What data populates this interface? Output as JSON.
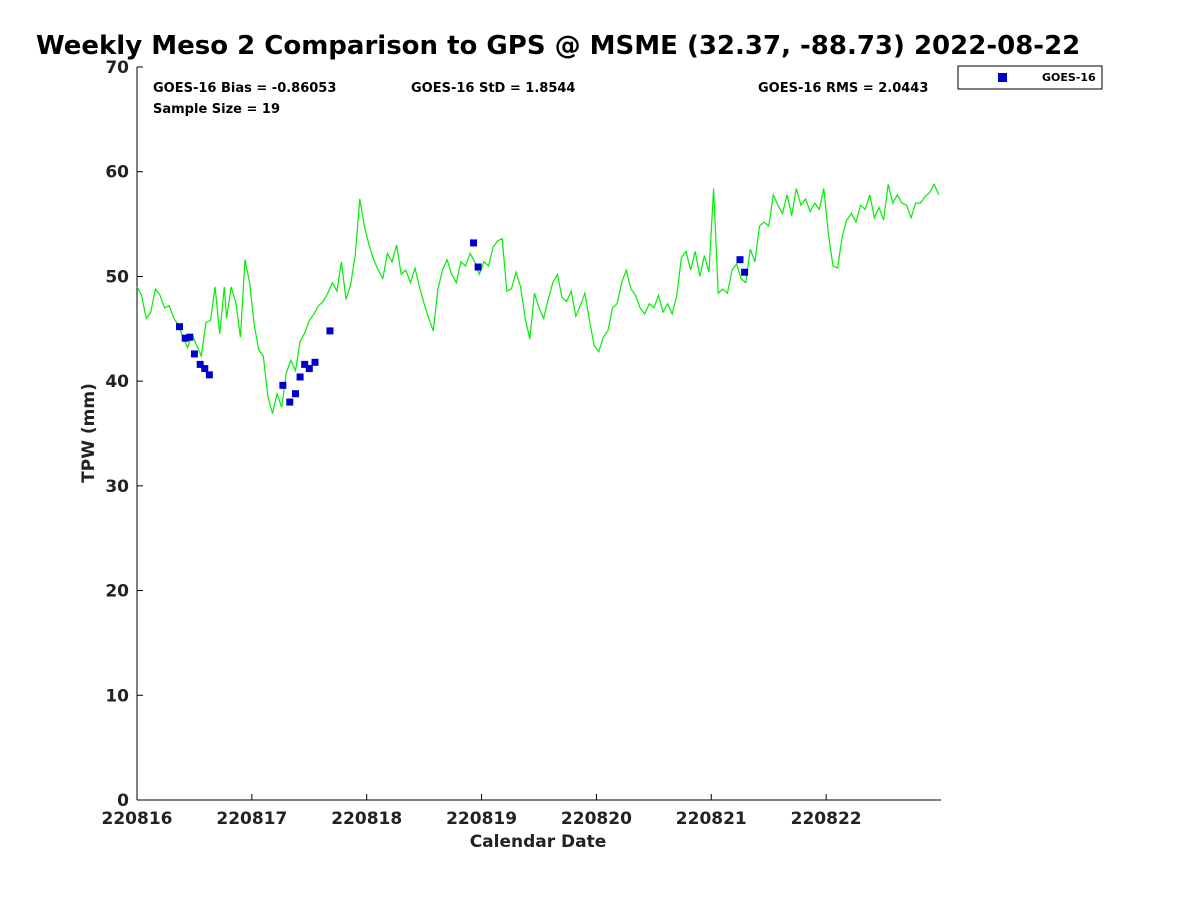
{
  "chart_data": {
    "type": "scatter",
    "title": "Weekly Meso 2 Comparison to GPS @ MSME (32.37, -88.73) 2022-08-22",
    "xlabel": "Calendar Date",
    "ylabel": "TPW (mm)",
    "xlim": [
      0,
      7
    ],
    "ylim": [
      0,
      70
    ],
    "x_ticks": [
      0,
      1,
      2,
      3,
      4,
      5,
      6
    ],
    "x_tick_labels": [
      "220816",
      "220817",
      "220818",
      "220819",
      "220820",
      "220821",
      "220822"
    ],
    "y_ticks": [
      0,
      10,
      20,
      30,
      40,
      50,
      60,
      70
    ],
    "y_tick_labels": [
      "0",
      "10",
      "20",
      "30",
      "40",
      "50",
      "60",
      "70"
    ],
    "grid": false,
    "legend_position": "outside-top-right",
    "stats": {
      "bias": "GOES-16 Bias = -0.86053",
      "std": "GOES-16 StD = 1.8544",
      "rms": "GOES-16 RMS = 2.0443",
      "sample": "Sample Size = 19"
    },
    "series": [
      {
        "name": "GOES-16",
        "kind": "scatter",
        "color": "#0000cc",
        "points": [
          [
            0.37,
            45.2
          ],
          [
            0.42,
            44.1
          ],
          [
            0.46,
            44.2
          ],
          [
            0.5,
            42.6
          ],
          [
            0.55,
            41.6
          ],
          [
            0.59,
            41.2
          ],
          [
            0.63,
            40.6
          ],
          [
            1.27,
            39.6
          ],
          [
            1.33,
            38.0
          ],
          [
            1.38,
            38.8
          ],
          [
            1.42,
            40.4
          ],
          [
            1.46,
            41.6
          ],
          [
            1.5,
            41.2
          ],
          [
            1.55,
            41.8
          ],
          [
            1.68,
            44.8
          ],
          [
            2.93,
            53.2
          ],
          [
            2.97,
            50.9
          ],
          [
            5.25,
            51.6
          ],
          [
            5.29,
            50.4
          ]
        ]
      },
      {
        "kind": "line",
        "color": "#00ee00",
        "points": [
          [
            0.0,
            49.0
          ],
          [
            0.04,
            48.2
          ],
          [
            0.08,
            46.0
          ],
          [
            0.12,
            46.6
          ],
          [
            0.16,
            48.8
          ],
          [
            0.2,
            48.2
          ],
          [
            0.24,
            47.0
          ],
          [
            0.28,
            47.2
          ],
          [
            0.32,
            46.0
          ],
          [
            0.36,
            45.4
          ],
          [
            0.4,
            44.2
          ],
          [
            0.44,
            43.2
          ],
          [
            0.48,
            44.4
          ],
          [
            0.52,
            43.4
          ],
          [
            0.56,
            42.4
          ],
          [
            0.6,
            45.6
          ],
          [
            0.64,
            45.8
          ],
          [
            0.68,
            49.0
          ],
          [
            0.72,
            44.5
          ],
          [
            0.76,
            49.0
          ],
          [
            0.78,
            46.0
          ],
          [
            0.82,
            49.0
          ],
          [
            0.86,
            47.5
          ],
          [
            0.9,
            44.2
          ],
          [
            0.94,
            51.6
          ],
          [
            0.98,
            49.4
          ],
          [
            1.02,
            45.4
          ],
          [
            1.06,
            43.0
          ],
          [
            1.1,
            42.4
          ],
          [
            1.14,
            38.5
          ],
          [
            1.18,
            36.9
          ],
          [
            1.22,
            38.8
          ],
          [
            1.26,
            37.5
          ],
          [
            1.3,
            40.8
          ],
          [
            1.34,
            42.0
          ],
          [
            1.38,
            41.0
          ],
          [
            1.42,
            43.8
          ],
          [
            1.46,
            44.6
          ],
          [
            1.5,
            45.8
          ],
          [
            1.54,
            46.4
          ],
          [
            1.58,
            47.2
          ],
          [
            1.62,
            47.6
          ],
          [
            1.66,
            48.4
          ],
          [
            1.7,
            49.4
          ],
          [
            1.74,
            48.6
          ],
          [
            1.78,
            51.4
          ],
          [
            1.82,
            47.8
          ],
          [
            1.86,
            49.2
          ],
          [
            1.9,
            52.0
          ],
          [
            1.94,
            57.4
          ],
          [
            1.98,
            54.8
          ],
          [
            2.02,
            53.0
          ],
          [
            2.06,
            51.6
          ],
          [
            2.1,
            50.6
          ],
          [
            2.14,
            49.8
          ],
          [
            2.18,
            52.2
          ],
          [
            2.22,
            51.4
          ],
          [
            2.26,
            53.0
          ],
          [
            2.3,
            50.2
          ],
          [
            2.34,
            50.6
          ],
          [
            2.38,
            49.4
          ],
          [
            2.42,
            50.8
          ],
          [
            2.46,
            49.0
          ],
          [
            2.5,
            47.4
          ],
          [
            2.54,
            46.0
          ],
          [
            2.58,
            44.8
          ],
          [
            2.62,
            48.8
          ],
          [
            2.66,
            50.6
          ],
          [
            2.7,
            51.6
          ],
          [
            2.74,
            50.2
          ],
          [
            2.78,
            49.4
          ],
          [
            2.82,
            51.4
          ],
          [
            2.86,
            51.0
          ],
          [
            2.9,
            52.2
          ],
          [
            2.94,
            51.4
          ],
          [
            2.98,
            50.2
          ],
          [
            3.02,
            51.4
          ],
          [
            3.06,
            51.0
          ],
          [
            3.1,
            52.8
          ],
          [
            3.14,
            53.4
          ],
          [
            3.18,
            53.6
          ],
          [
            3.22,
            48.6
          ],
          [
            3.26,
            48.8
          ],
          [
            3.3,
            50.4
          ],
          [
            3.34,
            49.0
          ],
          [
            3.38,
            46.0
          ],
          [
            3.42,
            44.0
          ],
          [
            3.46,
            48.4
          ],
          [
            3.5,
            47.0
          ],
          [
            3.54,
            46.0
          ],
          [
            3.58,
            47.8
          ],
          [
            3.62,
            49.4
          ],
          [
            3.66,
            50.2
          ],
          [
            3.7,
            48.0
          ],
          [
            3.74,
            47.6
          ],
          [
            3.78,
            48.6
          ],
          [
            3.82,
            46.2
          ],
          [
            3.86,
            47.2
          ],
          [
            3.9,
            48.4
          ],
          [
            3.94,
            45.8
          ],
          [
            3.98,
            43.4
          ],
          [
            4.02,
            42.8
          ],
          [
            4.06,
            44.2
          ],
          [
            4.1,
            44.8
          ],
          [
            4.14,
            47.0
          ],
          [
            4.18,
            47.4
          ],
          [
            4.22,
            49.4
          ],
          [
            4.26,
            50.6
          ],
          [
            4.3,
            48.8
          ],
          [
            4.34,
            48.2
          ],
          [
            4.38,
            47.0
          ],
          [
            4.42,
            46.4
          ],
          [
            4.46,
            47.4
          ],
          [
            4.5,
            47.0
          ],
          [
            4.54,
            48.2
          ],
          [
            4.58,
            46.6
          ],
          [
            4.62,
            47.4
          ],
          [
            4.66,
            46.4
          ],
          [
            4.7,
            48.2
          ],
          [
            4.74,
            51.8
          ],
          [
            4.78,
            52.4
          ],
          [
            4.82,
            50.6
          ],
          [
            4.86,
            52.4
          ],
          [
            4.9,
            50.0
          ],
          [
            4.94,
            52.0
          ],
          [
            4.98,
            50.4
          ],
          [
            5.02,
            58.4
          ],
          [
            5.06,
            48.4
          ],
          [
            5.1,
            48.8
          ],
          [
            5.14,
            48.4
          ],
          [
            5.18,
            50.6
          ],
          [
            5.22,
            51.2
          ],
          [
            5.26,
            49.8
          ],
          [
            5.3,
            49.4
          ],
          [
            5.34,
            52.6
          ],
          [
            5.38,
            51.4
          ],
          [
            5.42,
            54.8
          ],
          [
            5.46,
            55.2
          ],
          [
            5.5,
            54.8
          ],
          [
            5.54,
            57.8
          ],
          [
            5.58,
            56.8
          ],
          [
            5.62,
            56.0
          ],
          [
            5.66,
            57.8
          ],
          [
            5.7,
            55.8
          ],
          [
            5.74,
            58.4
          ],
          [
            5.78,
            56.8
          ],
          [
            5.82,
            57.4
          ],
          [
            5.86,
            56.2
          ],
          [
            5.9,
            57.0
          ],
          [
            5.94,
            56.4
          ],
          [
            5.98,
            58.4
          ],
          [
            6.02,
            54.0
          ],
          [
            6.06,
            51.0
          ],
          [
            6.1,
            50.8
          ],
          [
            6.14,
            53.8
          ],
          [
            6.18,
            55.4
          ],
          [
            6.22,
            56.0
          ],
          [
            6.26,
            55.2
          ],
          [
            6.3,
            56.8
          ],
          [
            6.34,
            56.4
          ],
          [
            6.38,
            57.8
          ],
          [
            6.42,
            55.6
          ],
          [
            6.46,
            56.6
          ],
          [
            6.5,
            55.4
          ],
          [
            6.54,
            58.8
          ],
          [
            6.58,
            57.0
          ],
          [
            6.62,
            57.8
          ],
          [
            6.66,
            57.0
          ],
          [
            6.7,
            56.8
          ],
          [
            6.74,
            55.6
          ],
          [
            6.78,
            57.0
          ],
          [
            6.82,
            57.0
          ],
          [
            6.86,
            57.6
          ],
          [
            6.9,
            58.0
          ],
          [
            6.94,
            58.8
          ],
          [
            6.98,
            57.8
          ]
        ]
      }
    ]
  }
}
